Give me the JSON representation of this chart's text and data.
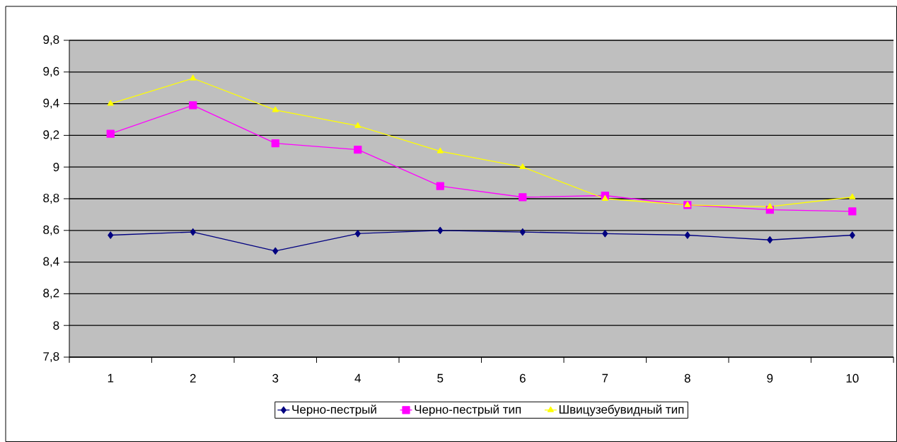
{
  "chart_data": {
    "type": "line",
    "categories": [
      "1",
      "2",
      "3",
      "4",
      "5",
      "6",
      "7",
      "8",
      "9",
      "10"
    ],
    "series": [
      {
        "name": "Черно-пестрый",
        "color": "#000080",
        "marker": "diamond",
        "values": [
          8.57,
          8.59,
          8.47,
          8.58,
          8.6,
          8.59,
          8.58,
          8.57,
          8.54,
          8.57
        ]
      },
      {
        "name": "Черно-пестрый тип",
        "color": "#ff00ff",
        "marker": "square",
        "values": [
          9.21,
          9.39,
          9.15,
          9.11,
          8.88,
          8.81,
          8.82,
          8.76,
          8.73,
          8.72
        ]
      },
      {
        "name": "Швицузебувидный тип",
        "color": "#ffff00",
        "marker": "triangle",
        "values": [
          9.4,
          9.56,
          9.36,
          9.26,
          9.1,
          9.0,
          8.8,
          8.76,
          8.75,
          8.81
        ]
      }
    ],
    "ylim": [
      7.8,
      9.8
    ],
    "yticks": [
      {
        "value": 7.8,
        "label": "7,8"
      },
      {
        "value": 8,
        "label": "8"
      },
      {
        "value": 8.2,
        "label": "8,2"
      },
      {
        "value": 8.4,
        "label": "8,4"
      },
      {
        "value": 8.6,
        "label": "8,6"
      },
      {
        "value": 8.8,
        "label": "8,8"
      },
      {
        "value": 9,
        "label": "9"
      },
      {
        "value": 9.2,
        "label": "9,2"
      },
      {
        "value": 9.4,
        "label": "9,4"
      },
      {
        "value": 9.6,
        "label": "9,6"
      },
      {
        "value": 9.8,
        "label": "9,8"
      }
    ],
    "grid": "y",
    "legend": "bottom",
    "line_style": "solid"
  }
}
